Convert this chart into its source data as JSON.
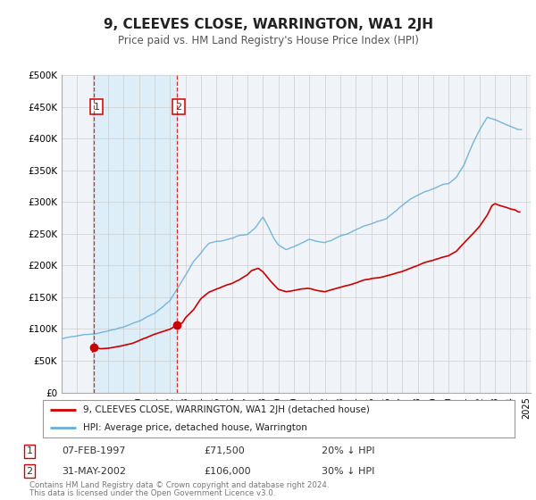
{
  "title": "9, CLEEVES CLOSE, WARRINGTON, WA1 2JH",
  "subtitle": "Price paid vs. HM Land Registry's House Price Index (HPI)",
  "xlim": [
    1995.0,
    2025.3
  ],
  "ylim": [
    0,
    500000
  ],
  "yticks": [
    0,
    50000,
    100000,
    150000,
    200000,
    250000,
    300000,
    350000,
    400000,
    450000,
    500000
  ],
  "ytick_labels": [
    "£0",
    "£50K",
    "£100K",
    "£150K",
    "£200K",
    "£250K",
    "£300K",
    "£350K",
    "£400K",
    "£450K",
    "£500K"
  ],
  "xticks": [
    1995,
    1996,
    1997,
    1998,
    1999,
    2000,
    2001,
    2002,
    2003,
    2004,
    2005,
    2006,
    2007,
    2008,
    2009,
    2010,
    2011,
    2012,
    2013,
    2014,
    2015,
    2016,
    2017,
    2018,
    2019,
    2020,
    2021,
    2022,
    2023,
    2024,
    2025
  ],
  "sale1_date": 1997.1,
  "sale1_price": 71500,
  "sale1_label": "1",
  "sale1_date_str": "07-FEB-1997",
  "sale1_price_str": "£71,500",
  "sale1_hpi": "20% ↓ HPI",
  "sale2_date": 2002.42,
  "sale2_price": 106000,
  "sale2_label": "2",
  "sale2_date_str": "31-MAY-2002",
  "sale2_price_str": "£106,000",
  "sale2_hpi": "30% ↓ HPI",
  "hpi_color": "#6aaed6",
  "price_color": "#cc0000",
  "highlight_color": "#ddeef8",
  "grid_color": "#cccccc",
  "legend_label_price": "9, CLEEVES CLOSE, WARRINGTON, WA1 2JH (detached house)",
  "legend_label_hpi": "HPI: Average price, detached house, Warrington",
  "footer_line1": "Contains HM Land Registry data © Crown copyright and database right 2024.",
  "footer_line2": "This data is licensed under the Open Government Licence v3.0.",
  "bg_color": "#f0f4f8"
}
